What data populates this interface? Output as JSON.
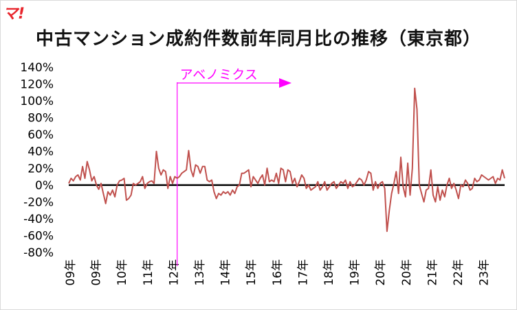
{
  "logo": "マ!",
  "title": "中古マンション成約件数前年同月比の推移（東京都）",
  "colors": {
    "series": "#c0504d",
    "zero_line": "#000000",
    "annotation": "#ff00ff",
    "text": "#000000"
  },
  "chart_data": {
    "type": "line",
    "title": "中古マンション成約件数前年同月比の推移（東京都）",
    "ylim": [
      -80,
      140
    ],
    "y_ticks": [
      140,
      120,
      100,
      80,
      60,
      40,
      20,
      0,
      -20,
      -40,
      -60,
      -80
    ],
    "y_tick_labels": [
      "140%",
      "120%",
      "100%",
      "80%",
      "60%",
      "40%",
      "20%",
      "0%",
      "-20%",
      "-40%",
      "-60%",
      "-80%"
    ],
    "x_start": "2009-01",
    "x_tick_labels": [
      "09年",
      "09年",
      "10年",
      "11年",
      "12年",
      "13年",
      "14年",
      "15年",
      "16年",
      "17年",
      "18年",
      "19年",
      "20年",
      "20年",
      "21年",
      "22年",
      "23年"
    ],
    "grid": false,
    "annotation": {
      "text": "アベノミクス",
      "start": "2012-12"
    },
    "series": [
      {
        "values": [
          2,
          8,
          5,
          10,
          12,
          6,
          22,
          8,
          28,
          18,
          5,
          10,
          0,
          -5,
          2,
          -10,
          -22,
          -8,
          -12,
          -6,
          -14,
          0,
          5,
          6,
          8,
          -18,
          -16,
          -12,
          2,
          0,
          2,
          4,
          10,
          -4,
          2,
          4,
          5,
          2,
          40,
          20,
          12,
          18,
          16,
          -4,
          10,
          2,
          10,
          8,
          10,
          14,
          16,
          18,
          41,
          18,
          10,
          24,
          22,
          14,
          22,
          22,
          6,
          4,
          6,
          -8,
          -16,
          -10,
          -12,
          -8,
          -10,
          -8,
          -12,
          -6,
          -10,
          -2,
          0,
          14,
          14,
          16,
          18,
          -2,
          10,
          6,
          2,
          8,
          12,
          0,
          20,
          4,
          6,
          4,
          14,
          2,
          20,
          18,
          4,
          18,
          16,
          2,
          8,
          -2,
          4,
          12,
          8,
          -4,
          0,
          -6,
          -4,
          -2,
          4,
          -6,
          -2,
          4,
          -6,
          -2,
          2,
          4,
          -4,
          0,
          4,
          2,
          6,
          -4,
          4,
          -2,
          0,
          4,
          8,
          6,
          0,
          6,
          16,
          14,
          -6,
          4,
          -4,
          2,
          4,
          -4,
          -55,
          -30,
          -10,
          2,
          16,
          -10,
          33,
          -2,
          -14,
          26,
          -12,
          20,
          115,
          90,
          0,
          -10,
          -20,
          -6,
          -4,
          18,
          -12,
          -20,
          -2,
          -18,
          -6,
          -14,
          0,
          8,
          -4,
          2,
          -6,
          -16,
          0,
          -2,
          6,
          2,
          -6,
          -4,
          8,
          4,
          6,
          12,
          10,
          8,
          6,
          8,
          10,
          2,
          8,
          6,
          18,
          8
        ]
      }
    ]
  }
}
